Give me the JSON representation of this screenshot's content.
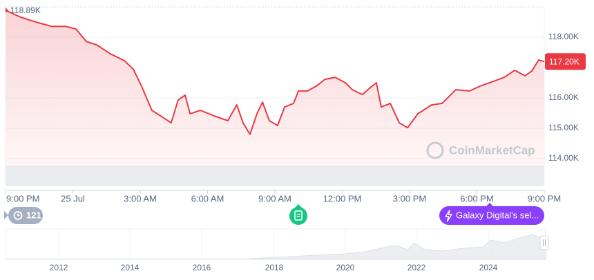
{
  "chart_data": {
    "type": "line",
    "color": "#ea3943",
    "x": [
      0,
      0.68,
      1.45,
      2.06,
      2.68,
      3.14,
      3.6,
      4.06,
      4.68,
      5.29,
      5.69,
      6.06,
      6.52,
      6.9,
      7.38,
      7.69,
      8.0,
      8.22,
      8.68,
      9.29,
      9.9,
      10.3,
      10.58,
      10.89,
      11.2,
      11.45,
      11.75,
      12.12,
      12.43,
      12.83,
      13.05,
      13.45,
      13.85,
      14.22,
      14.68,
      15.14,
      15.45,
      15.9,
      16.22,
      16.52,
      16.74,
      17.14,
      17.54,
      17.91,
      18.37,
      18.98,
      19.45,
      20.06,
      20.68,
      21.14,
      21.75,
      22.22,
      22.68,
      23.14,
      23.45,
      23.75,
      24.0
    ],
    "values": [
      118890,
      118660,
      118480,
      118360,
      118360,
      118270,
      117860,
      117750,
      117450,
      117230,
      116950,
      116390,
      115590,
      115410,
      115180,
      115930,
      116090,
      115480,
      115590,
      115410,
      115250,
      115770,
      115180,
      114800,
      115480,
      115860,
      115250,
      115090,
      115700,
      115820,
      116230,
      116230,
      116390,
      116610,
      116680,
      116500,
      116270,
      116110,
      116320,
      116500,
      115700,
      115820,
      115180,
      115020,
      115480,
      115770,
      115820,
      116270,
      116230,
      116390,
      116550,
      116680,
      116910,
      116730,
      116890,
      117250,
      117200
    ],
    "xlim": [
      0,
      24
    ],
    "xticks": [
      {
        "value": 0,
        "label": "9:00 PM"
      },
      {
        "value": 3,
        "label": "25 Jul"
      },
      {
        "value": 6,
        "label": "3:00 AM"
      },
      {
        "value": 9,
        "label": "6:00 AM"
      },
      {
        "value": 12,
        "label": "9:00 AM"
      },
      {
        "value": 15,
        "label": "12:00 PM"
      },
      {
        "value": 18,
        "label": "3:00 PM"
      },
      {
        "value": 21,
        "label": "6:00 PM"
      },
      {
        "value": 24,
        "label": "9:00 PM"
      }
    ],
    "ylim": [
      113090,
      119000
    ],
    "yticks": [
      {
        "value": 114000,
        "label": "114.00K"
      },
      {
        "value": 115000,
        "label": "115.00K"
      },
      {
        "value": 116000,
        "label": "116.00K"
      },
      {
        "value": 118000,
        "label": "118.00K"
      }
    ],
    "grid": true,
    "high": {
      "value": 118890,
      "label": "118.89K"
    },
    "current": {
      "value": 117200,
      "label": "117.20K"
    },
    "watermark": "CoinMarketCap",
    "event_count": "121",
    "news_button": "Galaxy Digital's sel...",
    "navigator_years": [
      "2012",
      "2014",
      "2016",
      "2018",
      "2020",
      "2022",
      "2024"
    ]
  }
}
